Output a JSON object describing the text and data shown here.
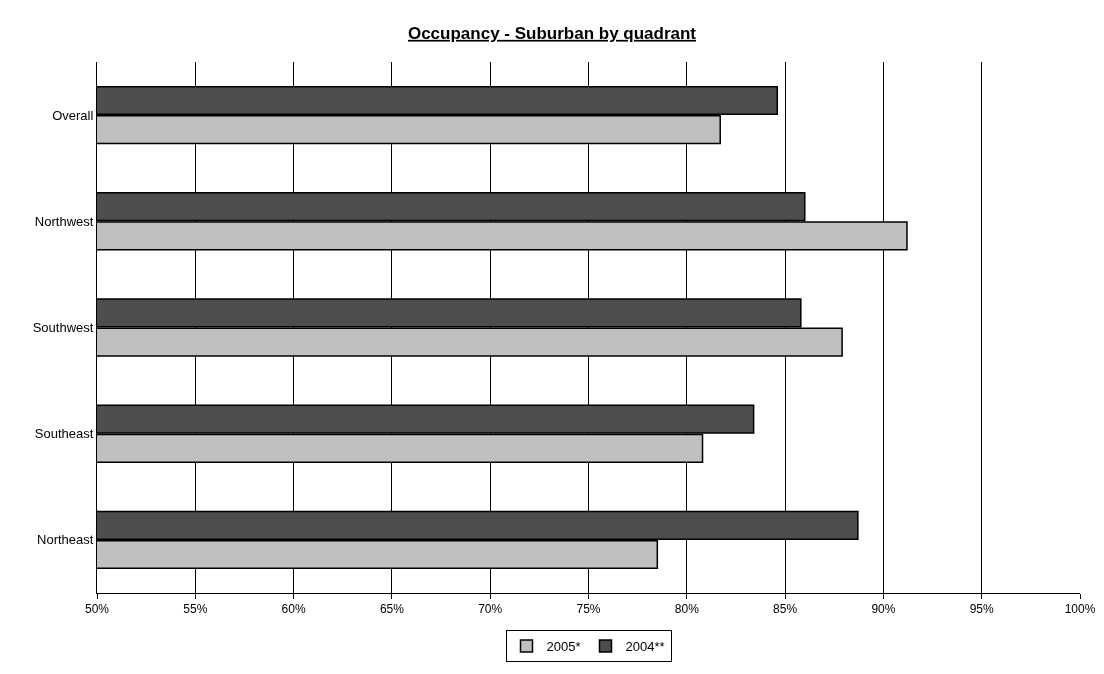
{
  "chart_data": {
    "type": "bar",
    "orientation": "horizontal",
    "title": "Occupancy - Suburban by quadrant",
    "categories": [
      "Overall",
      "Northwest",
      "Southwest",
      "Southeast",
      "Northeast"
    ],
    "series": [
      {
        "name": "2005*",
        "color": "#c0c0c0",
        "values": [
          81.7,
          91.2,
          87.9,
          80.8,
          78.5
        ]
      },
      {
        "name": "2004**",
        "color": "#4d4d4d",
        "values": [
          84.6,
          86.0,
          85.8,
          83.4,
          88.7
        ]
      }
    ],
    "xlim": [
      50,
      100
    ],
    "xticks": [
      {
        "value": 50,
        "label": "50%"
      },
      {
        "value": 55,
        "label": "55%"
      },
      {
        "value": 60,
        "label": "60%"
      },
      {
        "value": 65,
        "label": "65%"
      },
      {
        "value": 70,
        "label": "70%"
      },
      {
        "value": 75,
        "label": "75%"
      },
      {
        "value": 80,
        "label": "80%"
      },
      {
        "value": 85,
        "label": "85%"
      },
      {
        "value": 90,
        "label": "90%"
      },
      {
        "value": 95,
        "label": "95%"
      },
      {
        "value": 100,
        "label": "100%"
      }
    ],
    "grid": "x",
    "legend": "bottom"
  }
}
